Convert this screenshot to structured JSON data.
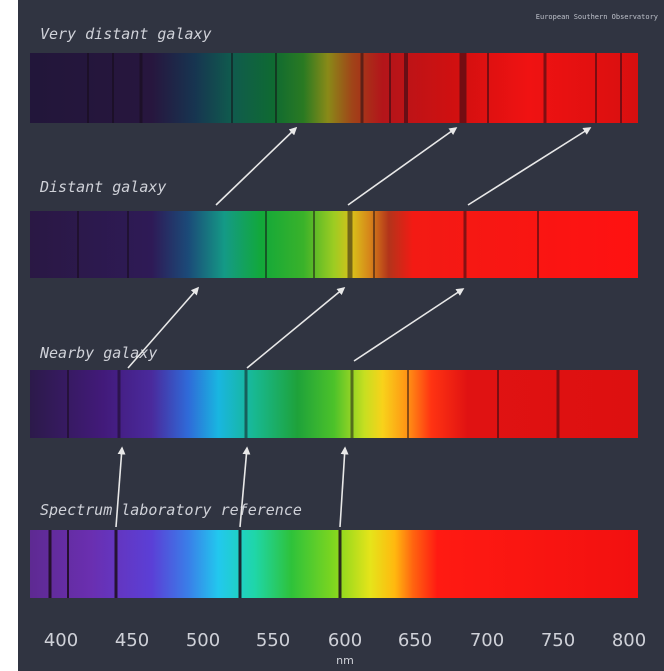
{
  "credit": "European Southern Observatory",
  "spectra": [
    {
      "label": "Very distant galaxy",
      "kind": "very-distant"
    },
    {
      "label": "Distant galaxy",
      "kind": "distant"
    },
    {
      "label": "Nearby galaxy",
      "kind": "nearby"
    },
    {
      "label": "Spectrum laboratory reference",
      "kind": "reference"
    }
  ],
  "axis": {
    "ticks": [
      "400",
      "450",
      "500",
      "550",
      "600",
      "650",
      "700",
      "750",
      "800"
    ],
    "unit": "nm"
  },
  "reference_lines_nm": [
    434,
    526,
    596
  ],
  "colors": {
    "background": "#303441",
    "text": "#cfd1d8",
    "arrow": "#e8e8e8"
  }
}
